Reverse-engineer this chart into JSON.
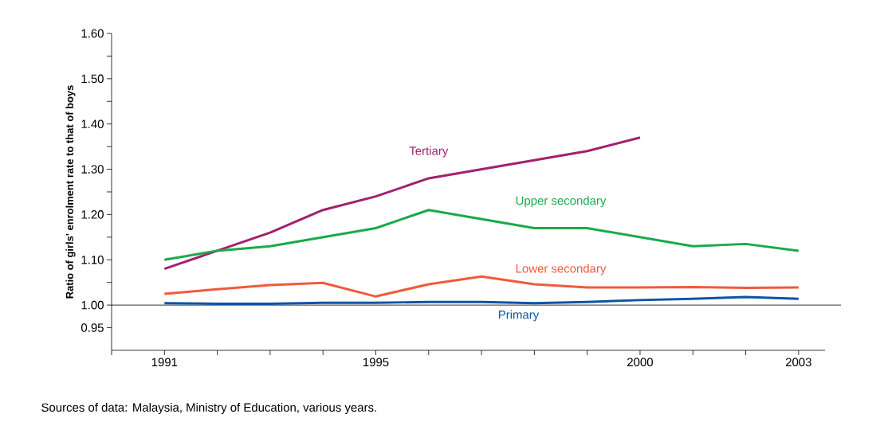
{
  "chart_data": {
    "type": "line",
    "ylabel": "Ratio of girls' enrolment rate to that of boys",
    "x": [
      1991,
      1992,
      1993,
      1994,
      1995,
      1996,
      1997,
      1998,
      1999,
      2000,
      2001,
      2002,
      2003
    ],
    "series": [
      {
        "name": "Tertiary",
        "color": "#a3206e",
        "values": [
          1.08,
          1.12,
          1.16,
          1.21,
          1.24,
          1.28,
          1.3,
          1.32,
          1.34,
          1.37,
          null,
          null,
          null
        ]
      },
      {
        "name": "Upper secondary",
        "color": "#1aaa4a",
        "values": [
          1.1,
          1.12,
          1.13,
          1.15,
          1.17,
          1.21,
          1.19,
          1.17,
          1.17,
          1.15,
          1.13,
          1.135,
          1.12
        ]
      },
      {
        "name": "Lower secondary",
        "color": "#f05a3c",
        "values": [
          1.025,
          1.035,
          1.044,
          1.049,
          1.019,
          1.046,
          1.063,
          1.046,
          1.039,
          1.039,
          1.04,
          1.038,
          1.039
        ]
      },
      {
        "name": "Primary",
        "color": "#0a55a5",
        "values": [
          1.004,
          1.003,
          1.003,
          1.005,
          1.005,
          1.007,
          1.007,
          1.004,
          1.007,
          1.011,
          1.014,
          1.018,
          1.014
        ]
      }
    ],
    "xlim": [
      1990,
      2003.5
    ],
    "xticks": [
      {
        "value": 1990,
        "label": null
      },
      1991,
      {
        "value": 1992,
        "label": null
      },
      {
        "value": 1993,
        "label": null
      },
      {
        "value": 1994,
        "label": null
      },
      1995,
      {
        "value": 1996,
        "label": null
      },
      {
        "value": 1997,
        "label": null
      },
      {
        "value": 1998,
        "label": null
      },
      {
        "value": 1999,
        "label": null
      },
      2000,
      {
        "value": 2001,
        "label": null
      },
      {
        "value": 2002,
        "label": null
      },
      2003
    ],
    "ylim": [
      0.9,
      1.6
    ],
    "yticks": [
      {
        "value": 0.95,
        "label": "0.95"
      },
      {
        "value": 1.0,
        "label": "1.00"
      },
      {
        "value": 1.05,
        "label": null
      },
      {
        "value": 1.1,
        "label": "1.10"
      },
      {
        "value": 1.15,
        "label": null
      },
      {
        "value": 1.2,
        "label": "1.20"
      },
      {
        "value": 1.25,
        "label": null
      },
      {
        "value": 1.3,
        "label": "1.30"
      },
      {
        "value": 1.35,
        "label": null
      },
      {
        "value": 1.4,
        "label": "1.40"
      },
      {
        "value": 1.45,
        "label": null
      },
      {
        "value": 1.5,
        "label": "1.50"
      },
      {
        "value": 1.55,
        "label": null
      },
      {
        "value": 1.6,
        "label": "1.60"
      }
    ],
    "ref_lines": [
      {
        "axis": "y",
        "value": 1.0,
        "color": "#000000"
      }
    ],
    "grid": false,
    "legend": false,
    "line_style": "solid",
    "annotations": [
      "Sources of data: Malaysia, Ministry of Education, various years."
    ]
  }
}
